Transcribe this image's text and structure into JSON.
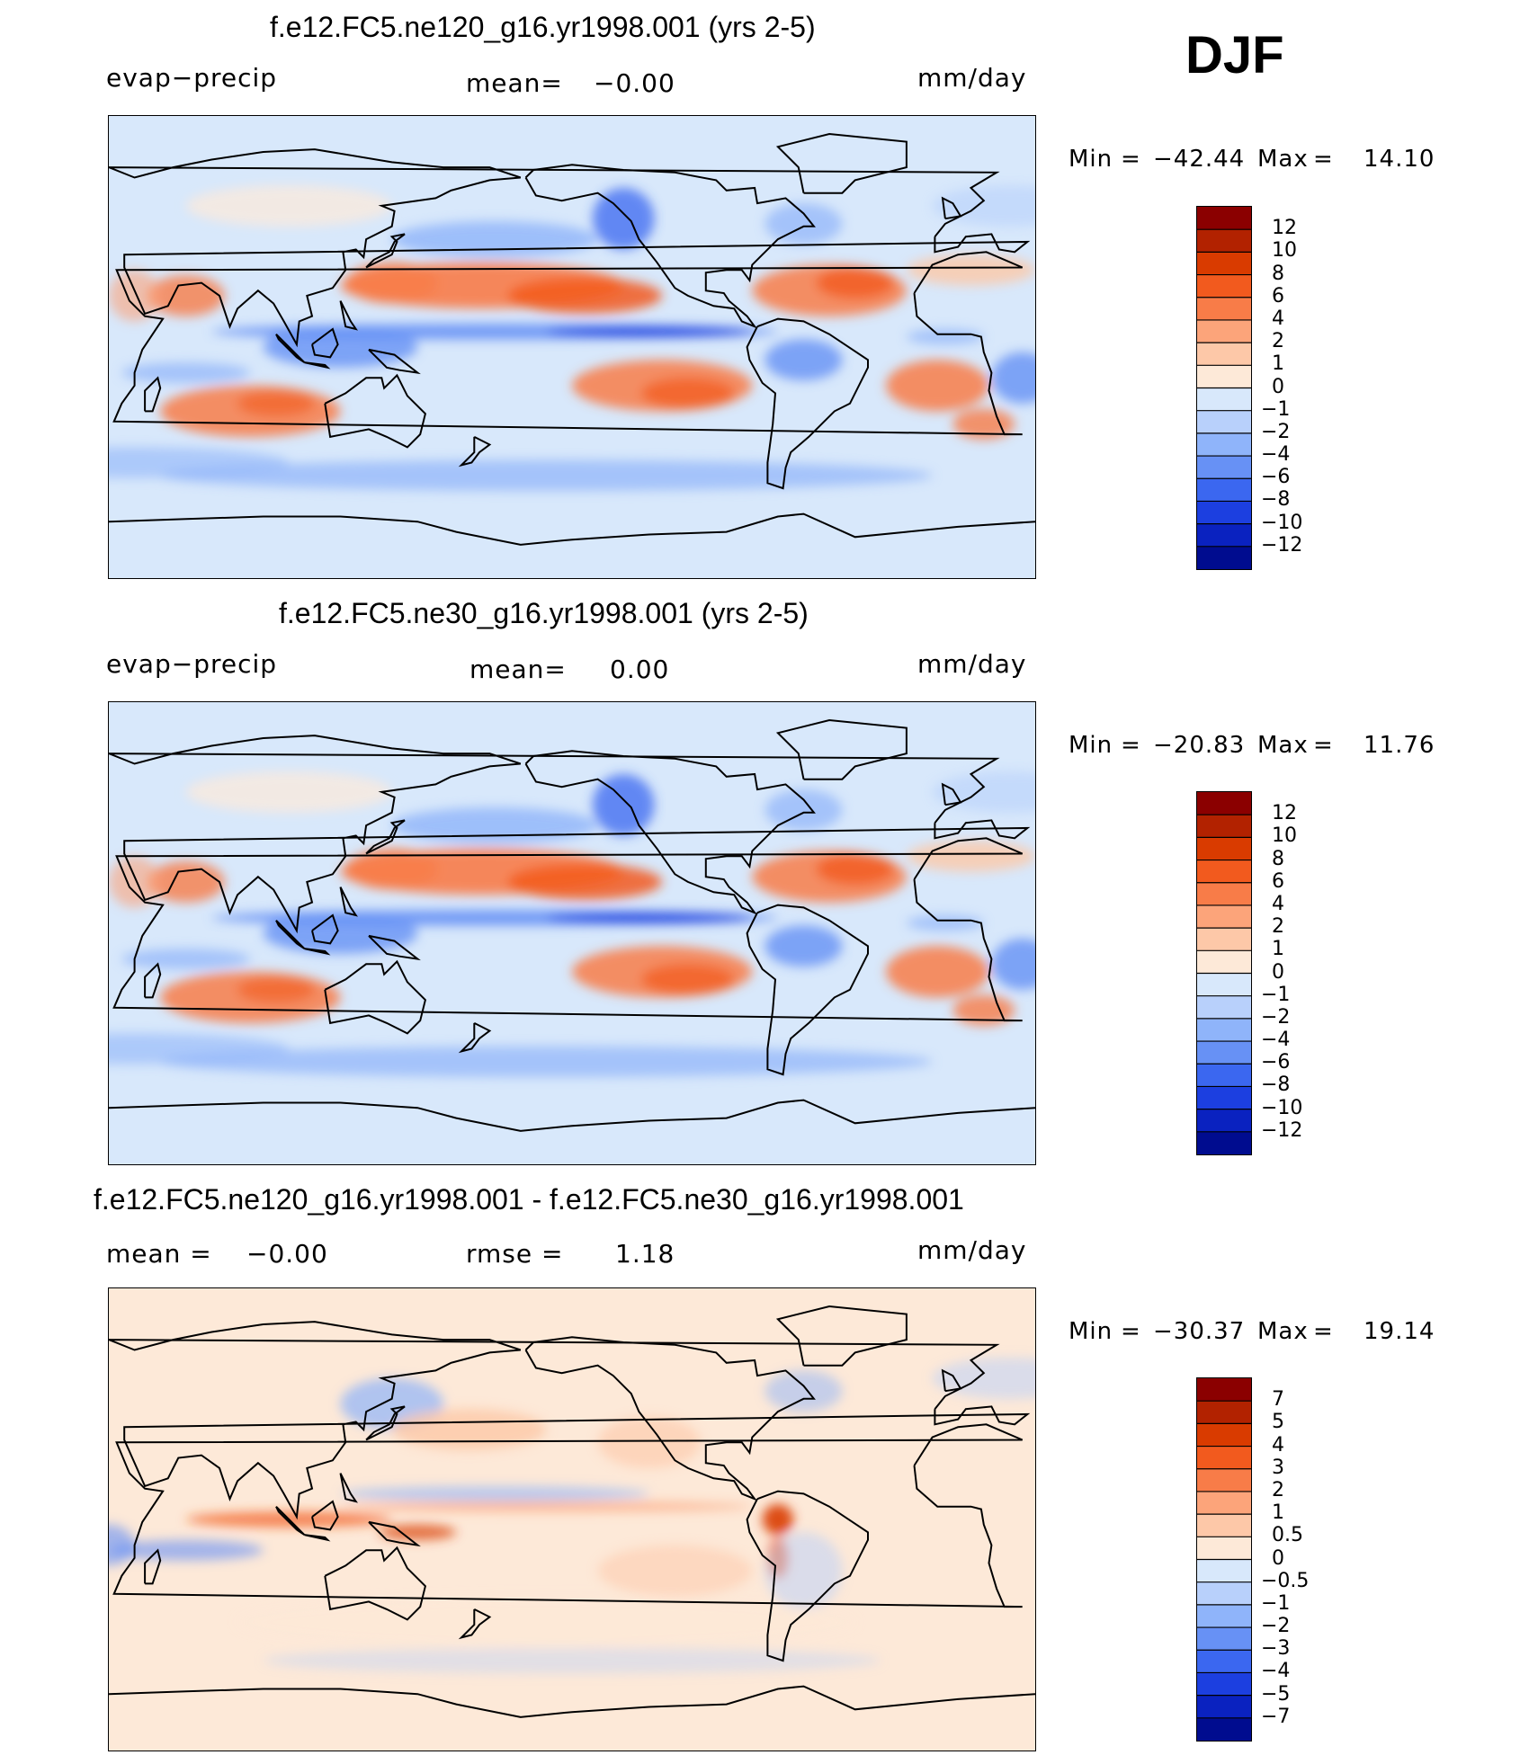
{
  "season": "DJF",
  "panels": [
    {
      "title": "f.e12.FC5.ne120_g16.yr1998.001 (yrs 2-5)",
      "left_label": "evap−precip",
      "mean_label": "mean=",
      "mean_value": "−0.00",
      "units": "mm/day",
      "min_label": "Min",
      "min_value": "−42.44",
      "max_label": "Max",
      "max_value": "14.10"
    },
    {
      "title": "f.e12.FC5.ne30_g16.yr1998.001 (yrs 2-5)",
      "left_label": "evap−precip",
      "mean_label": "mean=",
      "mean_value": "0.00",
      "units": "mm/day",
      "min_label": "Min",
      "min_value": "−20.83",
      "max_label": "Max",
      "max_value": "11.76"
    },
    {
      "title": "f.e12.FC5.ne120_g16.yr1998.001 - f.e12.FC5.ne30_g16.yr1998.001",
      "mean_label": "mean =",
      "mean_value": "−0.00",
      "rmse_label": "rmse =",
      "rmse_value": "1.18",
      "units": "mm/day",
      "min_label": "Min",
      "min_value": "−30.37",
      "max_label": "Max",
      "max_value": "19.14"
    }
  ],
  "chart_data": [
    {
      "type": "heatmap",
      "title": "f.e12.FC5.ne120_g16.yr1998.001 (yrs 2-5)",
      "variable": "evap−precip",
      "units": "mm/day",
      "mean": -0.0,
      "min": -42.44,
      "max": 14.1,
      "levels": [
        "12",
        "10",
        "8",
        "6",
        "4",
        "2",
        "1",
        "0",
        "−1",
        "−2",
        "−4",
        "−6",
        "−8",
        "−10",
        "−12"
      ],
      "colors": [
        "#8b0000",
        "#b22200",
        "#d93b00",
        "#f25a1e",
        "#f87c48",
        "#fca47a",
        "#fdc8a8",
        "#fde9d8",
        "#d8e8fb",
        "#b8d0fb",
        "#8fb4fa",
        "#6791f5",
        "#3b67f0",
        "#1c3fe0",
        "#0a22c0",
        "#000c8f"
      ]
    },
    {
      "type": "heatmap",
      "title": "f.e12.FC5.ne30_g16.yr1998.001 (yrs 2-5)",
      "variable": "evap−precip",
      "units": "mm/day",
      "mean": 0.0,
      "min": -20.83,
      "max": 11.76,
      "levels": [
        "12",
        "10",
        "8",
        "6",
        "4",
        "2",
        "1",
        "0",
        "−1",
        "−2",
        "−4",
        "−6",
        "−8",
        "−10",
        "−12"
      ],
      "colors": [
        "#8b0000",
        "#b22200",
        "#d93b00",
        "#f25a1e",
        "#f87c48",
        "#fca47a",
        "#fdc8a8",
        "#fde9d8",
        "#d8e8fb",
        "#b8d0fb",
        "#8fb4fa",
        "#6791f5",
        "#3b67f0",
        "#1c3fe0",
        "#0a22c0",
        "#000c8f"
      ]
    },
    {
      "type": "heatmap",
      "title": "f.e12.FC5.ne120_g16.yr1998.001 - f.e12.FC5.ne30_g16.yr1998.001",
      "units": "mm/day",
      "mean": -0.0,
      "rmse": 1.18,
      "min": -30.37,
      "max": 19.14,
      "levels": [
        "7",
        "5",
        "4",
        "3",
        "2",
        "1",
        "0.5",
        "0",
        "−0.5",
        "−1",
        "−2",
        "−3",
        "−4",
        "−5",
        "−7"
      ],
      "colors": [
        "#8b0000",
        "#b22200",
        "#d93b00",
        "#f25a1e",
        "#f87c48",
        "#fca47a",
        "#fdc8a8",
        "#fde9d8",
        "#d8e8fb",
        "#b8d0fb",
        "#8fb4fa",
        "#6791f5",
        "#3b67f0",
        "#1c3fe0",
        "#0a22c0",
        "#000c8f"
      ]
    }
  ]
}
